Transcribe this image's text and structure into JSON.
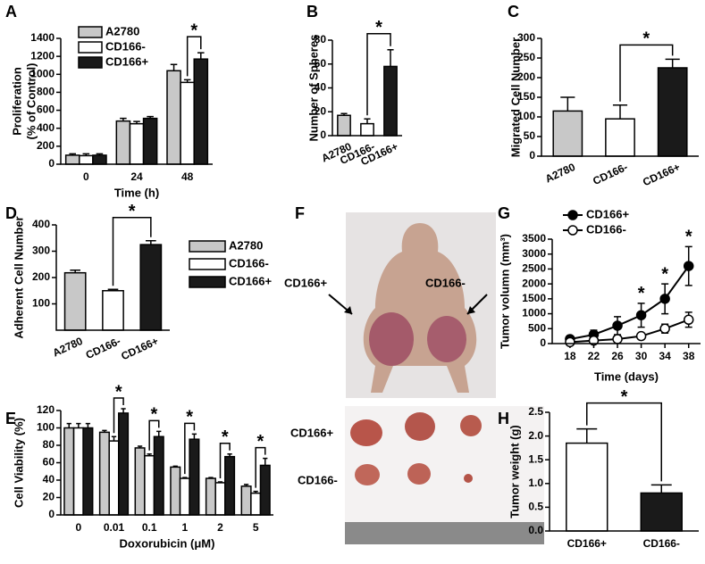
{
  "chart_data": [
    {
      "panel": "A",
      "type": "bar",
      "y_label": [
        "Proliferation",
        "(% of Control)"
      ],
      "x_label": "Time (h)",
      "categories": [
        "0",
        "24",
        "48"
      ],
      "series": [
        {
          "name": "A2780",
          "color": "#c8c8c8",
          "values": [
            100,
            480,
            1040
          ],
          "errors": [
            15,
            30,
            70
          ]
        },
        {
          "name": "CD166-",
          "color": "#ffffff",
          "values": [
            95,
            450,
            910
          ],
          "errors": [
            20,
            25,
            30
          ]
        },
        {
          "name": "CD166+",
          "color": "#1a1a1a",
          "values": [
            100,
            510,
            1170
          ],
          "errors": [
            15,
            20,
            70
          ]
        }
      ],
      "ylim": [
        0,
        1400
      ],
      "yticks": [
        0,
        200,
        400,
        600,
        800,
        1000,
        1200,
        1400
      ],
      "legend": true,
      "annotations": [
        "*"
      ]
    },
    {
      "panel": "B",
      "type": "bar",
      "y_label": "Number of Spheres",
      "categories": [
        "A2780",
        "CD166-",
        "CD166+"
      ],
      "values": [
        17,
        10,
        58
      ],
      "errors": [
        1.5,
        4,
        14
      ],
      "colors": [
        "#c8c8c8",
        "#ffffff",
        "#1a1a1a"
      ],
      "ylim": [
        0,
        80
      ],
      "yticks": [
        0,
        20,
        40,
        60,
        80
      ],
      "legend": false,
      "annotations": [
        "*"
      ]
    },
    {
      "panel": "C",
      "type": "bar",
      "y_label": "Migrated Cell Number",
      "categories": [
        "A2780",
        "CD166-",
        "CD166+"
      ],
      "values": [
        115,
        95,
        225
      ],
      "errors": [
        35,
        35,
        22
      ],
      "colors": [
        "#c8c8c8",
        "#ffffff",
        "#1a1a1a"
      ],
      "ylim": [
        0,
        300
      ],
      "yticks": [
        0,
        50,
        100,
        150,
        200,
        250,
        300
      ],
      "legend": false,
      "annotations": [
        "*"
      ]
    },
    {
      "panel": "D",
      "type": "bar",
      "y_label": "Adherent Cell Number",
      "categories": [
        "A2780",
        "CD166-",
        "CD166+"
      ],
      "values": [
        218,
        150,
        325
      ],
      "errors": [
        10,
        5,
        15
      ],
      "colors": [
        "#c8c8c8",
        "#ffffff",
        "#1a1a1a"
      ],
      "ylim": [
        0,
        400
      ],
      "yticks": [
        100,
        200,
        300,
        400
      ],
      "legend": true,
      "annotations": [
        "*"
      ]
    },
    {
      "panel": "E",
      "type": "bar",
      "y_label": "Cell Viability (%)",
      "x_label": "Doxorubicin (μM)",
      "categories": [
        "0",
        "0.01",
        "0.1",
        "1",
        "2",
        "5"
      ],
      "series": [
        {
          "name": "A2780",
          "color": "#c8c8c8",
          "values": [
            100,
            95,
            77,
            55,
            42,
            33
          ],
          "errors": [
            5,
            2,
            2,
            1,
            1,
            2
          ]
        },
        {
          "name": "CD166-",
          "color": "#ffffff",
          "values": [
            100,
            85,
            68,
            42,
            37,
            25
          ],
          "errors": [
            5,
            5,
            2,
            1,
            1,
            2
          ]
        },
        {
          "name": "CD166+",
          "color": "#1a1a1a",
          "values": [
            100,
            117,
            90,
            87,
            67,
            57
          ],
          "errors": [
            5,
            5,
            6,
            6,
            3,
            8
          ]
        }
      ],
      "ylim": [
        0,
        120
      ],
      "yticks": [
        0,
        20,
        40,
        60,
        80,
        100,
        120
      ],
      "legend": false,
      "annotations": [
        "*",
        "*",
        "*",
        "*",
        "*"
      ]
    },
    {
      "panel": "G",
      "type": "line",
      "y_label": "Tumor volumn (mm³)",
      "x_label": "Time (days)",
      "x": [
        18,
        22,
        26,
        30,
        34,
        38
      ],
      "xlim": [
        15,
        40
      ],
      "xticks": [
        18,
        22,
        26,
        30,
        34,
        38
      ],
      "series": [
        {
          "name": "CD166+",
          "color": "#000000",
          "values": [
            150,
            300,
            600,
            950,
            1500,
            2600
          ],
          "errors": [
            80,
            150,
            300,
            400,
            500,
            650
          ]
        },
        {
          "name": "CD166-",
          "color": "#ffffff",
          "values": [
            50,
            100,
            150,
            250,
            500,
            800
          ],
          "errors": [
            20,
            30,
            50,
            80,
            150,
            250
          ]
        }
      ],
      "ylim": [
        0,
        3500
      ],
      "yticks": [
        0,
        500,
        1000,
        1500,
        2000,
        2500,
        3000,
        3500
      ],
      "legend": true,
      "annotations": [
        "*",
        "*",
        "*"
      ]
    },
    {
      "panel": "H",
      "type": "bar",
      "y_label": "Tumor weight (g)",
      "categories": [
        "CD166+",
        "CD166-"
      ],
      "values": [
        1.85,
        0.8
      ],
      "errors": [
        0.3,
        0.17
      ],
      "colors": [
        "#ffffff",
        "#1a1a1a"
      ],
      "ylim": [
        0,
        2.5
      ],
      "yticks": [
        {
          "value": 0,
          "label": "0.0"
        },
        0.5,
        {
          "value": 1,
          "label": "1.0"
        },
        1.5,
        {
          "value": 2,
          "label": "2.0"
        },
        2.5
      ],
      "legend": false,
      "annotations": [
        "*"
      ]
    }
  ],
  "photo": {
    "panel": "F",
    "top_labels": [
      "CD166+",
      "CD166-"
    ],
    "bottom_labels": [
      "CD166+",
      "CD166-"
    ]
  }
}
